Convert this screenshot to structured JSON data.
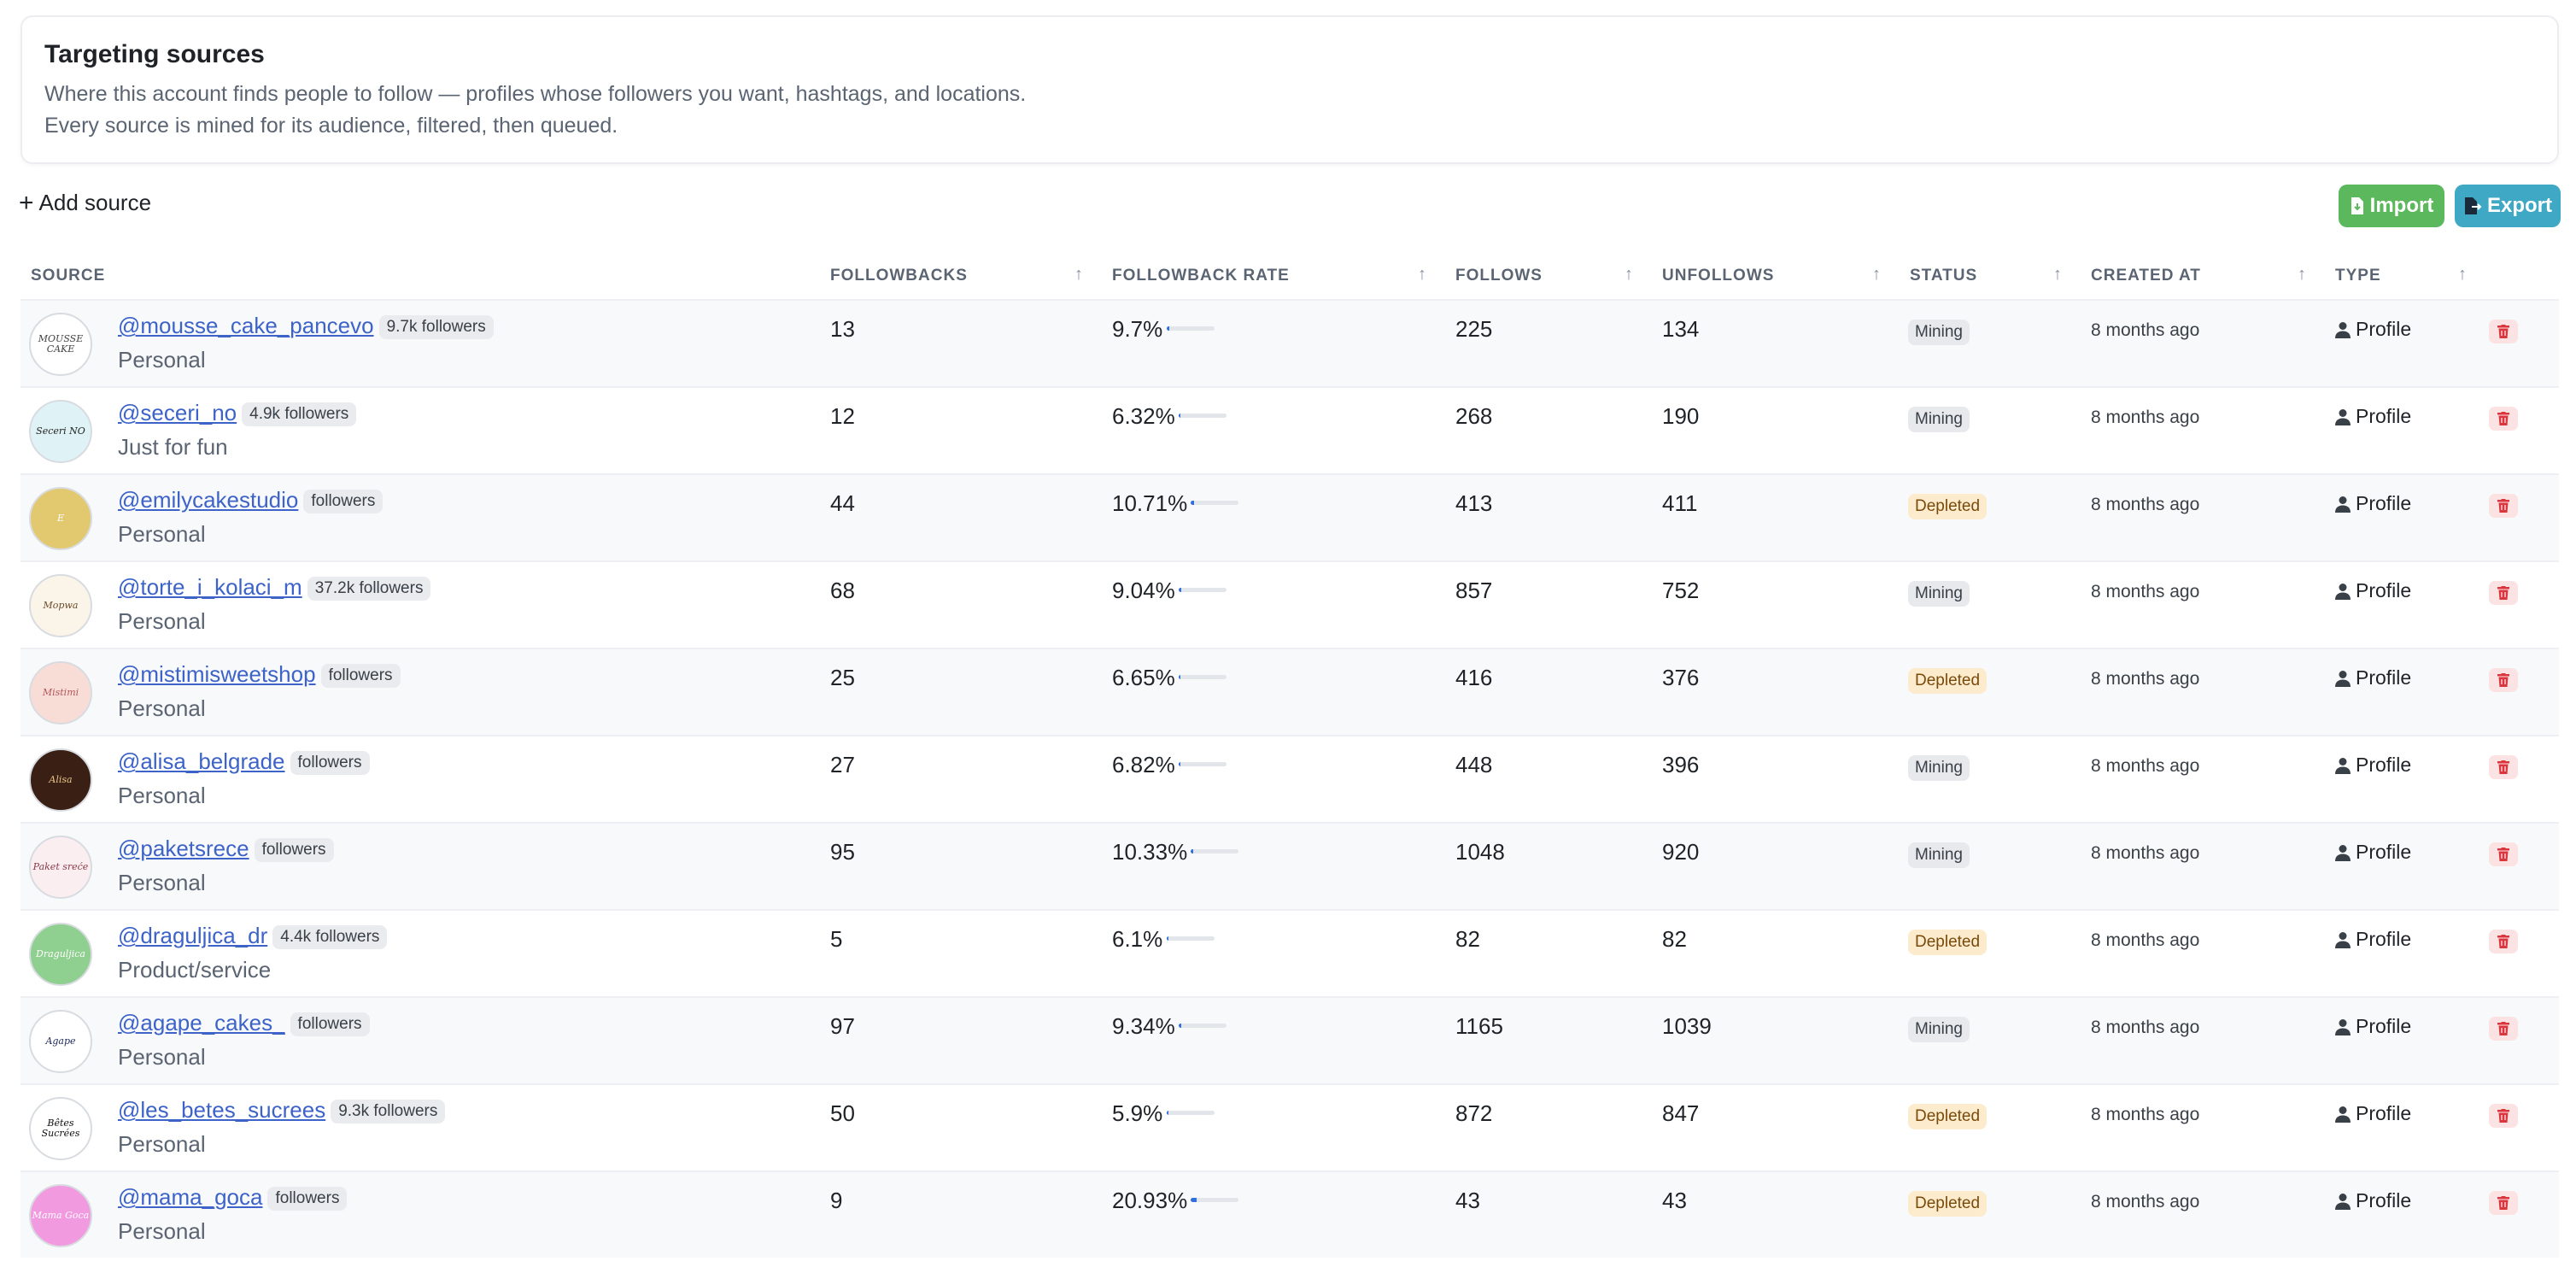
{
  "header": {
    "title": "Targeting sources",
    "description": "Where this account finds people to follow — profiles whose followers you want, hashtags, and locations. Every source is mined for its audience, filtered, then queued."
  },
  "toolbar": {
    "add_source_label": "Add source",
    "import_label": "Import",
    "export_label": "Export"
  },
  "columns": {
    "source": "SOURCE",
    "followbacks": "FOLLOWBACKS",
    "followback_rate": "FOLLOWBACK RATE",
    "follows": "FOLLOWS",
    "unfollows": "UNFOLLOWS",
    "status": "STATUS",
    "created_at": "CREATED AT",
    "type": "TYPE"
  },
  "colors": {
    "link": "#3d63c9",
    "import": "#5cb85c",
    "export": "#3fa8c5",
    "rate_bar": "#2f6fe0",
    "delete": "#d9363e"
  },
  "rows": [
    {
      "handle": "@mousse_cake_pancevo",
      "badge": "9.7k followers",
      "category": "Personal",
      "followbacks": "13",
      "rate": "9.7%",
      "rate_value": 0.097,
      "follows": "225",
      "unfollows": "134",
      "status": "Mining",
      "created": "8 months ago",
      "type": "Profile",
      "avatar_text": "MOUSSE CAKE",
      "avatar_bg": "#ffffff",
      "avatar_fg": "#444444"
    },
    {
      "handle": "@seceri_no",
      "badge": "4.9k followers",
      "category": "Just for fun",
      "followbacks": "12",
      "rate": "6.32%",
      "rate_value": 0.0632,
      "follows": "268",
      "unfollows": "190",
      "status": "Mining",
      "created": "8 months ago",
      "type": "Profile",
      "avatar_text": "Seceri NO",
      "avatar_bg": "#dff2f5",
      "avatar_fg": "#222222"
    },
    {
      "handle": "@emilycakestudio",
      "badge": "followers",
      "category": "Personal",
      "followbacks": "44",
      "rate": "10.71%",
      "rate_value": 0.1071,
      "follows": "413",
      "unfollows": "411",
      "status": "Depleted",
      "created": "8 months ago",
      "type": "Profile",
      "avatar_text": "E",
      "avatar_bg": "#e2c970",
      "avatar_fg": "#ffffff"
    },
    {
      "handle": "@torte_i_kolaci_m",
      "badge": "37.2k followers",
      "category": "Personal",
      "followbacks": "68",
      "rate": "9.04%",
      "rate_value": 0.0904,
      "follows": "857",
      "unfollows": "752",
      "status": "Mining",
      "created": "8 months ago",
      "type": "Profile",
      "avatar_text": "Mopwa",
      "avatar_bg": "#fbf4e8",
      "avatar_fg": "#6b4a2a"
    },
    {
      "handle": "@mistimisweetshop",
      "badge": "followers",
      "category": "Personal",
      "followbacks": "25",
      "rate": "6.65%",
      "rate_value": 0.0665,
      "follows": "416",
      "unfollows": "376",
      "status": "Depleted",
      "created": "8 months ago",
      "type": "Profile",
      "avatar_text": "Mistimi",
      "avatar_bg": "#f8ddd7",
      "avatar_fg": "#b3565a"
    },
    {
      "handle": "@alisa_belgrade",
      "badge": "followers",
      "category": "Personal",
      "followbacks": "27",
      "rate": "6.82%",
      "rate_value": 0.0682,
      "follows": "448",
      "unfollows": "396",
      "status": "Mining",
      "created": "8 months ago",
      "type": "Profile",
      "avatar_text": "Alisa",
      "avatar_bg": "#3a1f14",
      "avatar_fg": "#e6c48a"
    },
    {
      "handle": "@paketsrece",
      "badge": "followers",
      "category": "Personal",
      "followbacks": "95",
      "rate": "10.33%",
      "rate_value": 0.1033,
      "follows": "1048",
      "unfollows": "920",
      "status": "Mining",
      "created": "8 months ago",
      "type": "Profile",
      "avatar_text": "Paket sreće",
      "avatar_bg": "#fbeef0",
      "avatar_fg": "#8a3a4a"
    },
    {
      "handle": "@draguljica_dr",
      "badge": "4.4k followers",
      "category": "Product/service",
      "followbacks": "5",
      "rate": "6.1%",
      "rate_value": 0.061,
      "follows": "82",
      "unfollows": "82",
      "status": "Depleted",
      "created": "8 months ago",
      "type": "Profile",
      "avatar_text": "Draguljica",
      "avatar_bg": "#8fcf8f",
      "avatar_fg": "#ffffff"
    },
    {
      "handle": "@agape_cakes_",
      "badge": "followers",
      "category": "Personal",
      "followbacks": "97",
      "rate": "9.34%",
      "rate_value": 0.0934,
      "follows": "1165",
      "unfollows": "1039",
      "status": "Mining",
      "created": "8 months ago",
      "type": "Profile",
      "avatar_text": "Agape",
      "avatar_bg": "#ffffff",
      "avatar_fg": "#1f2a5a"
    },
    {
      "handle": "@les_betes_sucrees",
      "badge": "9.3k followers",
      "category": "Personal",
      "followbacks": "50",
      "rate": "5.9%",
      "rate_value": 0.059,
      "follows": "872",
      "unfollows": "847",
      "status": "Depleted",
      "created": "8 months ago",
      "type": "Profile",
      "avatar_text": "Bêtes Sucrées",
      "avatar_bg": "#ffffff",
      "avatar_fg": "#111111"
    },
    {
      "handle": "@mama_goca",
      "badge": "followers",
      "category": "Personal",
      "followbacks": "9",
      "rate": "20.93%",
      "rate_value": 0.2093,
      "follows": "43",
      "unfollows": "43",
      "status": "Depleted",
      "created": "8 months ago",
      "type": "Profile",
      "avatar_text": "Mama Goca",
      "avatar_bg": "#f29ae0",
      "avatar_fg": "#ffffff"
    }
  ]
}
